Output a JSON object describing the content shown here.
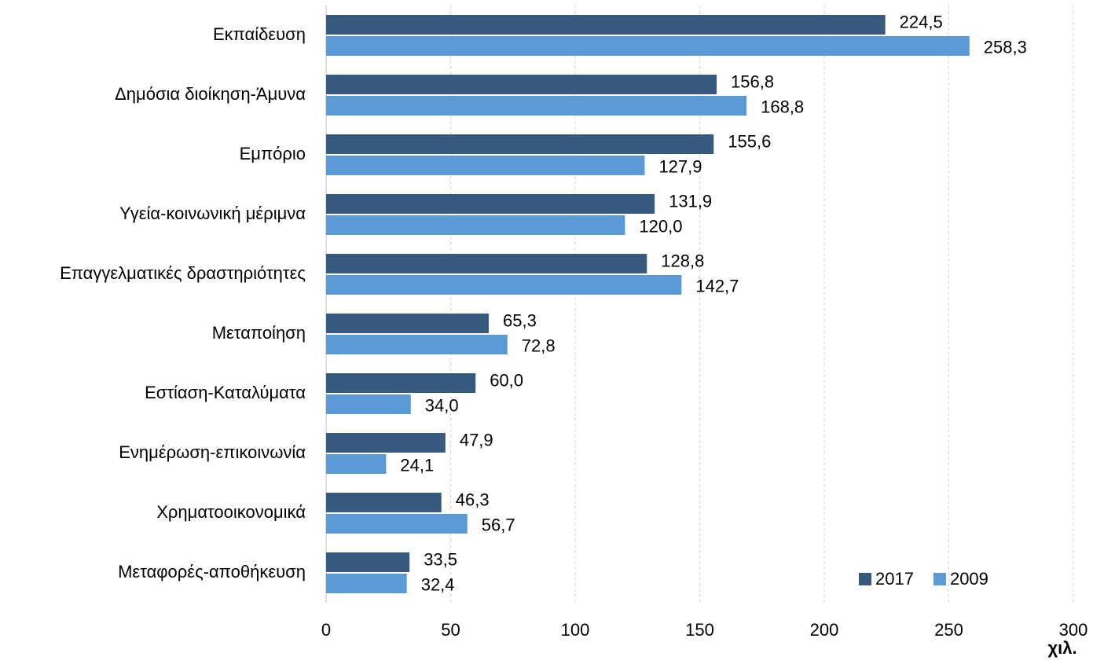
{
  "chart_data": {
    "type": "hbar",
    "x_label": "χιλ.",
    "categories": [
      "Εκπαίδευση",
      "Δημόσια διοίκηση-Άμυνα",
      "Εμπόριο",
      "Υγεία-κοινωνική μέριμνα",
      "Επαγγελματικές δραστηριότητες",
      "Μεταποίηση",
      "Εστίαση-Καταλύματα",
      "Ενημέρωση-επικοινωνία",
      "Χρηματοοικονομικά",
      "Μεταφορές-αποθήκευση"
    ],
    "series": [
      {
        "name": "2017",
        "color": "#375a7f",
        "values": [
          224.5,
          156.8,
          155.6,
          131.9,
          128.8,
          65.3,
          60.0,
          47.9,
          46.3,
          33.5
        ],
        "value_labels": [
          "224,5",
          "156,8",
          "155,6",
          "131,9",
          "128,8",
          "65,3",
          "60,0",
          "47,9",
          "46,3",
          "33,5"
        ]
      },
      {
        "name": "2009",
        "color": "#5b9bd5",
        "values": [
          258.3,
          168.8,
          127.9,
          120.0,
          142.7,
          72.8,
          34.0,
          24.1,
          56.7,
          32.4
        ],
        "value_labels": [
          "258,3",
          "168,8",
          "127,9",
          "120,0",
          "142,7",
          "72,8",
          "34,0",
          "24,1",
          "56,7",
          "32,4"
        ]
      }
    ],
    "xlim": [
      0,
      300
    ],
    "xticks": [
      0,
      50,
      100,
      150,
      200,
      250,
      300
    ],
    "grid": true,
    "legend": "lower right"
  }
}
